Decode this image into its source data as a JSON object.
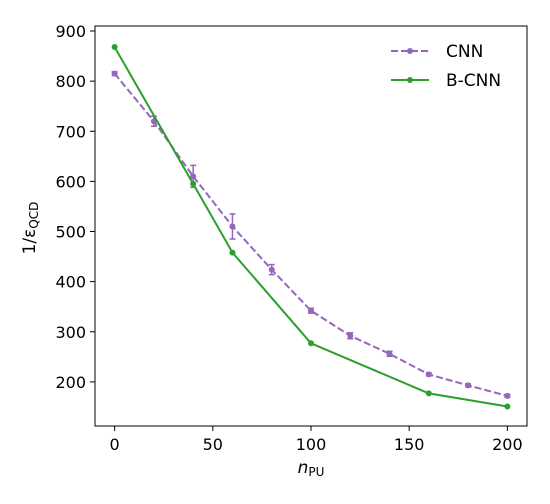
{
  "chart_data": {
    "type": "line",
    "title": "",
    "xlabel_main": "n",
    "xlabel_sub": "PU",
    "ylabel_main": "1/ε",
    "ylabel_sub": "QCD",
    "xlim": [
      -10,
      210
    ],
    "ylim": [
      112,
      910
    ],
    "xticks": [
      0,
      50,
      100,
      150,
      200
    ],
    "yticks": [
      200,
      300,
      400,
      500,
      600,
      700,
      800,
      900
    ],
    "grid": false,
    "legend_position": "top-right",
    "series": [
      {
        "name": "CNN",
        "color": "#9467bd",
        "line_style": "dashed",
        "marker": "circle",
        "x": [
          0,
          20,
          40,
          60,
          80,
          100,
          120,
          140,
          160,
          180,
          200
        ],
        "y": [
          815,
          720,
          610,
          510,
          424,
          342,
          292,
          256,
          215,
          193,
          172
        ],
        "yerr": [
          4,
          10,
          22,
          25,
          10,
          5,
          6,
          5,
          3,
          3,
          3
        ]
      },
      {
        "name": "B-CNN",
        "color": "#2ca02c",
        "line_style": "solid",
        "marker": "circle",
        "x": [
          0,
          40,
          60,
          100,
          160,
          200
        ],
        "y": [
          868,
          595,
          458,
          277,
          177,
          151
        ]
      }
    ]
  }
}
